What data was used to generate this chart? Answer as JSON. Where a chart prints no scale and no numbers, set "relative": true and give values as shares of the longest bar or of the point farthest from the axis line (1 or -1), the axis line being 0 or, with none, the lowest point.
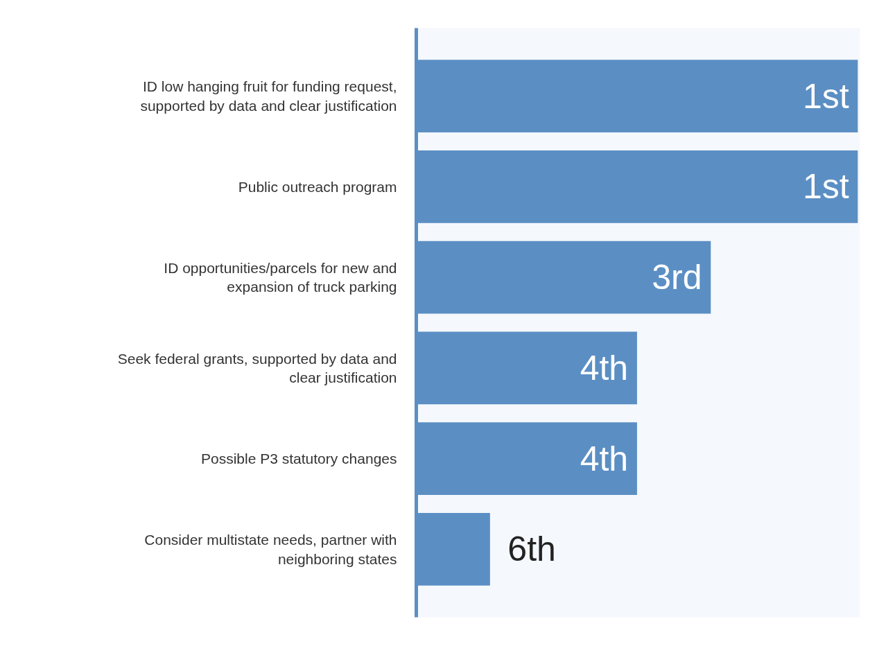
{
  "chart_data": {
    "type": "bar",
    "orientation": "horizontal",
    "relative": true,
    "categories": [
      "ID low hanging fruit for funding request, supported by data and clear justification",
      "Public outreach program",
      "ID opportunities/parcels for new and expansion of truck parking",
      "Seek federal grants, supported by data and clear justification",
      "Possible P3 statutory changes",
      "Consider multistate needs, partner with neighboring states"
    ],
    "values": [
      1,
      1,
      0.667,
      0.5,
      0.5,
      0.167
    ],
    "color": "#5b8fc4",
    "annotations": [
      {
        "text": "1st",
        "x": 1,
        "y": "ID low hanging fruit for funding request, supported by data and clear justification"
      },
      {
        "text": "1st",
        "x": 1,
        "y": "Public outreach program"
      },
      {
        "text": "3rd",
        "x": 0.667,
        "y": "ID opportunities/parcels for new and expansion of truck parking"
      },
      {
        "text": "4th",
        "x": 0.5,
        "y": "Seek federal grants, supported by data and clear justification"
      },
      {
        "text": "4th",
        "x": 0.5,
        "y": "Possible P3 statutory changes"
      },
      {
        "text": "6th",
        "x": 0.167,
        "y": "Consider multistate needs, partner with neighboring states"
      }
    ]
  }
}
